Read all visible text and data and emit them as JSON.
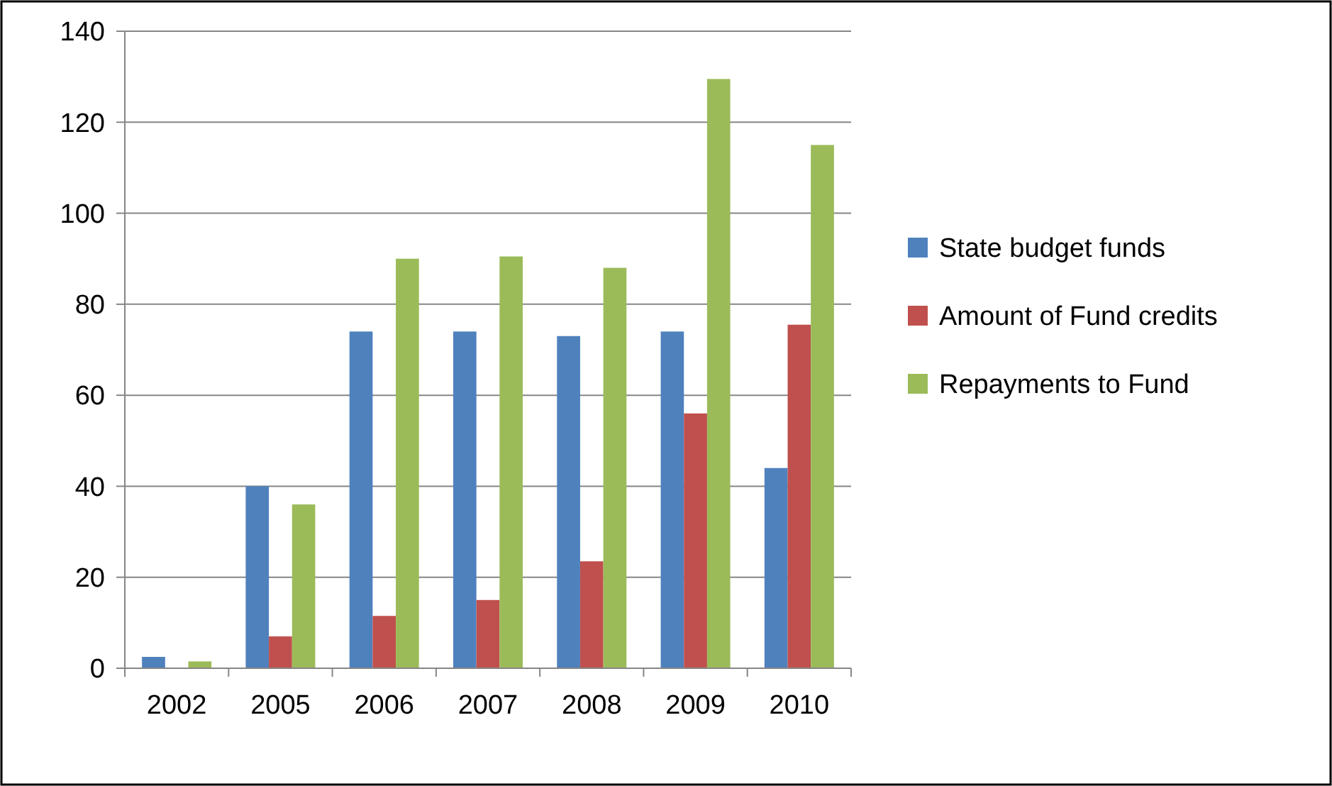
{
  "chart_data": {
    "type": "bar",
    "categories": [
      "2002",
      "2005",
      "2006",
      "2007",
      "2008",
      "2009",
      "2010"
    ],
    "series": [
      {
        "name": "State budget funds",
        "color": "#4f81bd",
        "values": [
          2.5,
          40,
          74,
          74,
          73,
          74,
          44
        ]
      },
      {
        "name": "Amount of Fund credits",
        "color": "#c0504d",
        "values": [
          0,
          7,
          11.5,
          15,
          23.5,
          56,
          75.5
        ]
      },
      {
        "name": "Repayments to Fund",
        "color": "#9bbb59",
        "values": [
          1.5,
          36,
          90,
          90.5,
          88,
          129.5,
          115
        ]
      }
    ],
    "ylim": [
      0,
      140
    ],
    "yticks": [
      0,
      20,
      40,
      60,
      80,
      100,
      120,
      140
    ],
    "grid": "y",
    "legend": "right"
  }
}
